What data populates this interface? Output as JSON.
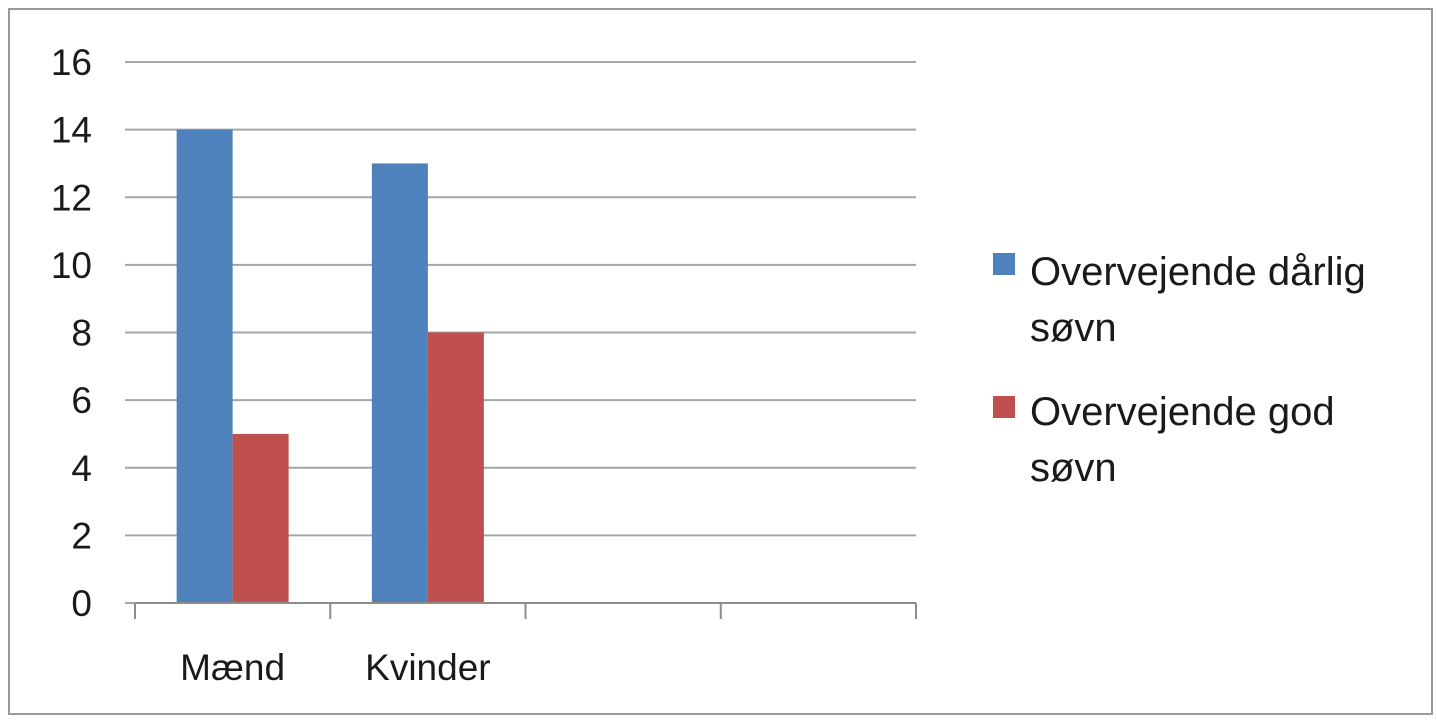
{
  "chart_data": {
    "type": "bar",
    "categories": [
      "Mænd",
      "Kvinder",
      "",
      ""
    ],
    "series": [
      {
        "name": "Overvejende dårlig søvn",
        "name_lines": [
          "Overvejende dårlig",
          "søvn"
        ],
        "values": [
          14,
          13,
          null,
          null
        ],
        "color": "#4f81bd"
      },
      {
        "name": "Overvejende god søvn",
        "name_lines": [
          "Overvejende god",
          "søvn"
        ],
        "values": [
          5,
          8,
          null,
          null
        ],
        "color": "#c0504d"
      }
    ],
    "ylim": [
      0,
      16
    ],
    "yticks": [
      0,
      2,
      4,
      6,
      8,
      10,
      12,
      14,
      16
    ],
    "grid": true,
    "legend": "right",
    "title": "",
    "xlabel": "",
    "ylabel": ""
  }
}
